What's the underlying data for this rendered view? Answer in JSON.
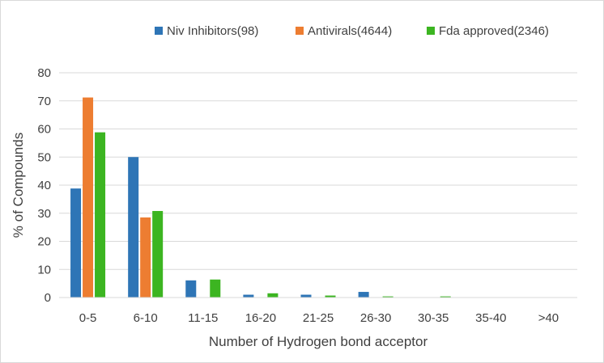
{
  "chart_data": {
    "type": "bar",
    "title": "",
    "xlabel": "Number of Hydrogen bond acceptor",
    "ylabel": "% of Compounds",
    "ylim": [
      0,
      80
    ],
    "yticks": [
      "0",
      "10",
      "20",
      "30",
      "40",
      "50",
      "60",
      "70",
      "80"
    ],
    "grid": true,
    "legend_position": "top-right",
    "categories": [
      "0-5",
      "6-10",
      "11-15",
      "16-20",
      "21-25",
      "26-30",
      "30-35",
      "35-40",
      ">40"
    ],
    "series": [
      {
        "name": "Niv Inhibitors(98)",
        "color": "#2e75b6",
        "values": [
          38.8,
          50.0,
          6.1,
          1.0,
          1.0,
          2.0,
          0,
          0,
          0
        ]
      },
      {
        "name": "Antivirals(4644)",
        "color": "#ed7d31",
        "values": [
          71.2,
          28.5,
          0,
          0,
          0,
          0,
          0,
          0,
          0
        ]
      },
      {
        "name": "Fda approved(2346)",
        "color": "#3cb521",
        "values": [
          58.8,
          30.8,
          6.4,
          1.5,
          0.7,
          0.4,
          0.4,
          0,
          0
        ]
      }
    ]
  }
}
